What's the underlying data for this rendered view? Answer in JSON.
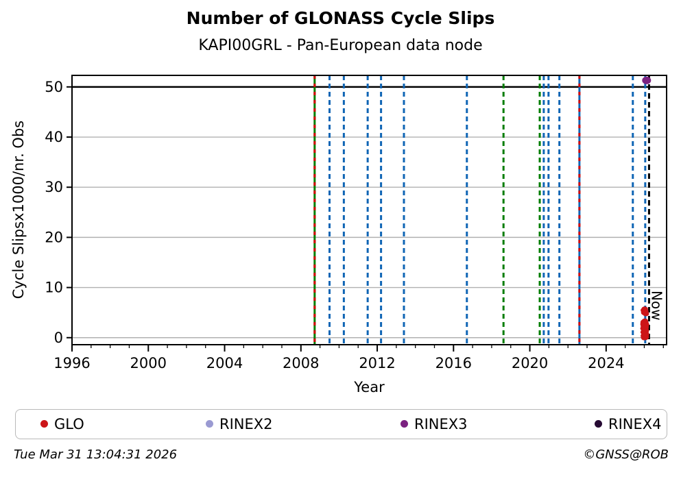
{
  "header": {
    "title": "Number of GLONASS Cycle Slips",
    "subtitle": "KAPI00GRL - Pan-European data node"
  },
  "chart_data": {
    "type": "scatter",
    "title": "Number of GLONASS Cycle Slips",
    "subtitle": "KAPI00GRL - Pan-European data node",
    "xlabel": "Year",
    "ylabel": "Cycle Slipsx1000/nr. Obs",
    "xlim": [
      1996,
      2027.17
    ],
    "ylim": [
      -1.4,
      52.3
    ],
    "xticks_major": [
      1996,
      2000,
      2004,
      2008,
      2012,
      2016,
      2020,
      2024
    ],
    "xticks_minor_step": 1,
    "yticks": [
      0,
      10,
      20,
      30,
      40,
      50
    ],
    "grid": true,
    "grid_color": "#b0b0b0",
    "threshold_line": {
      "y": 50,
      "color": "#000000"
    },
    "event_lines": [
      {
        "year": 2008.72,
        "color": "#007d00",
        "style": "solid",
        "overlay": "#d40000"
      },
      {
        "year": 2009.5,
        "color": "#0f65b5",
        "style": "dashed"
      },
      {
        "year": 2010.25,
        "color": "#0f65b5",
        "style": "dashed"
      },
      {
        "year": 2011.5,
        "color": "#0f65b5",
        "style": "dashed"
      },
      {
        "year": 2012.2,
        "color": "#0f65b5",
        "style": "dashed"
      },
      {
        "year": 2013.4,
        "color": "#0f65b5",
        "style": "dashed"
      },
      {
        "year": 2016.7,
        "color": "#0f65b5",
        "style": "dashed"
      },
      {
        "year": 2018.62,
        "color": "#007d00",
        "style": "dashed"
      },
      {
        "year": 2020.52,
        "color": "#007d00",
        "style": "dashed"
      },
      {
        "year": 2020.73,
        "color": "#0f65b5",
        "style": "dashed"
      },
      {
        "year": 2020.98,
        "color": "#0f65b5",
        "style": "dashed"
      },
      {
        "year": 2021.55,
        "color": "#0f65b5",
        "style": "dashed"
      },
      {
        "year": 2022.6,
        "color": "#0f65b5",
        "style": "solid",
        "overlay": "#d40000"
      },
      {
        "year": 2025.4,
        "color": "#0f65b5",
        "style": "dashed"
      },
      {
        "year": 2026.05,
        "color": "#0f65b5",
        "style": "dashed"
      }
    ],
    "now_line": {
      "year": 2026.25,
      "label": "Now",
      "color": "#000000",
      "style": "dashed"
    },
    "series": [
      {
        "name": "GLO",
        "color": "#cc1518",
        "marker_radius": 3.8,
        "points": [
          [
            2026.02,
            5.7
          ],
          [
            2025.98,
            5.45
          ],
          [
            2026.05,
            5.25
          ],
          [
            2026.0,
            5.0
          ],
          [
            2026.08,
            4.8
          ],
          [
            2026.03,
            3.3
          ],
          [
            2025.97,
            3.1
          ],
          [
            2026.06,
            2.95
          ],
          [
            2026.01,
            2.8
          ],
          [
            2026.09,
            2.6
          ],
          [
            2026.04,
            2.45
          ],
          [
            2025.98,
            2.3
          ],
          [
            2026.07,
            2.15
          ],
          [
            2026.02,
            2.0
          ],
          [
            2025.96,
            1.85
          ],
          [
            2026.05,
            1.7
          ],
          [
            2026.0,
            1.55
          ],
          [
            2026.08,
            1.4
          ],
          [
            2026.03,
            1.25
          ],
          [
            2025.97,
            1.1
          ],
          [
            2026.06,
            0.95
          ],
          [
            2026.01,
            0.8
          ],
          [
            2026.09,
            0.65
          ],
          [
            2026.04,
            0.5
          ],
          [
            2025.98,
            0.38
          ],
          [
            2026.07,
            0.27
          ],
          [
            2026.02,
            0.17
          ],
          [
            2025.99,
            0.08
          ],
          [
            2026.05,
            0.02
          ],
          [
            2026.0,
            0.0
          ],
          [
            2026.08,
            0.12
          ],
          [
            2026.03,
            0.6
          ],
          [
            2025.96,
            2.7
          ],
          [
            2026.06,
            1.9
          ]
        ]
      },
      {
        "name": "RINEX2",
        "color": "#9a9ad2",
        "marker_radius": 5.5,
        "points": []
      },
      {
        "name": "RINEX3",
        "color": "#7b2180",
        "marker_radius": 5.5,
        "points": [
          [
            2026.12,
            51.3
          ]
        ]
      },
      {
        "name": "RINEX4",
        "color": "#260a33",
        "marker_radius": 5.5,
        "points": []
      }
    ]
  },
  "legend": {
    "items": [
      {
        "label": "GLO",
        "color": "#cc1518"
      },
      {
        "label": "RINEX2",
        "color": "#9a9ad2"
      },
      {
        "label": "RINEX3",
        "color": "#7b2180"
      },
      {
        "label": "RINEX4",
        "color": "#260a33"
      }
    ]
  },
  "footer": {
    "timestamp": "Tue Mar 31 13:04:31 2026",
    "credit": "©GNSS@ROB"
  }
}
